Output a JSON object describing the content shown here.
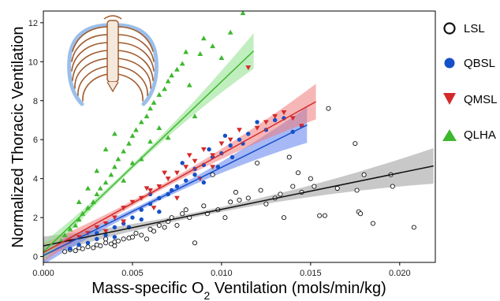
{
  "chart_data": {
    "type": "scatter",
    "title": "",
    "xlabel_main": "Mass-specific O",
    "xlabel_sub": "2",
    "xlabel_rest": " Ventilation (mols/min/kg)",
    "ylabel": "Normalized Thoracic Ventilation",
    "xlim": [
      0,
      0.022
    ],
    "ylim": [
      -0.3,
      12.6
    ],
    "x_ticks": [
      0.0,
      0.005,
      0.01,
      0.015,
      0.02
    ],
    "x_tick_labels": [
      "0.000",
      "0.005",
      "0.010",
      "0.015",
      "0.020"
    ],
    "y_ticks": [
      0,
      2,
      4,
      6,
      8,
      10,
      12
    ],
    "y_tick_labels": [
      "0",
      "2",
      "4",
      "6",
      "8",
      "10",
      "12"
    ],
    "legend_position": "right",
    "series": [
      {
        "name": "LSL",
        "marker": "open-circle",
        "color": "#111111",
        "band_color": "#9a9a9a",
        "fit": {
          "x": [
            0.0,
            0.0219
          ],
          "y": [
            0.55,
            4.65
          ]
        },
        "points": [
          [
            0.0012,
            0.25
          ],
          [
            0.0015,
            0.35
          ],
          [
            0.0018,
            0.3
          ],
          [
            0.002,
            0.45
          ],
          [
            0.0022,
            0.4
          ],
          [
            0.0025,
            0.5
          ],
          [
            0.0028,
            0.45
          ],
          [
            0.003,
            0.6
          ],
          [
            0.0032,
            0.55
          ],
          [
            0.0035,
            0.7
          ],
          [
            0.0038,
            0.65
          ],
          [
            0.004,
            0.75
          ],
          [
            0.0042,
            0.8
          ],
          [
            0.0045,
            0.9
          ],
          [
            0.0048,
            0.95
          ],
          [
            0.005,
            1.0
          ],
          [
            0.0052,
            1.2
          ],
          [
            0.0055,
            1.1
          ],
          [
            0.006,
            1.4
          ],
          [
            0.0062,
            1.3
          ],
          [
            0.0065,
            1.6
          ],
          [
            0.0068,
            1.5
          ],
          [
            0.007,
            1.8
          ],
          [
            0.0072,
            2.0
          ],
          [
            0.0075,
            1.6
          ],
          [
            0.0078,
            2.2
          ],
          [
            0.008,
            2.4
          ],
          [
            0.0082,
            2.0
          ],
          [
            0.0085,
            0.7
          ],
          [
            0.009,
            2.6
          ],
          [
            0.0092,
            2.2
          ],
          [
            0.0095,
            4.2
          ],
          [
            0.0098,
            2.4
          ],
          [
            0.0102,
            2.0
          ],
          [
            0.0105,
            2.8
          ],
          [
            0.0108,
            3.3
          ],
          [
            0.011,
            2.9
          ],
          [
            0.0115,
            3.0
          ],
          [
            0.012,
            4.8
          ],
          [
            0.0122,
            3.4
          ],
          [
            0.0125,
            2.7
          ],
          [
            0.013,
            3.0
          ],
          [
            0.0133,
            3.2
          ],
          [
            0.0135,
            2.0
          ],
          [
            0.0138,
            5.1
          ],
          [
            0.014,
            3.6
          ],
          [
            0.0143,
            4.3
          ],
          [
            0.0145,
            3.3
          ],
          [
            0.015,
            4.0
          ],
          [
            0.0152,
            3.6
          ],
          [
            0.0155,
            2.1
          ],
          [
            0.0158,
            2.1
          ],
          [
            0.016,
            7.6
          ],
          [
            0.0165,
            3.5
          ],
          [
            0.0175,
            5.8
          ],
          [
            0.0176,
            3.4
          ],
          [
            0.0177,
            2.3
          ],
          [
            0.0178,
            2.2
          ],
          [
            0.018,
            4.2
          ],
          [
            0.0185,
            1.7
          ],
          [
            0.0195,
            4.2
          ],
          [
            0.0196,
            3.6
          ],
          [
            0.0208,
            1.5
          ],
          [
            0.004,
            0.55
          ],
          [
            0.0035,
            0.9
          ],
          [
            0.0058,
            0.9
          ]
        ]
      },
      {
        "name": "QBSL",
        "marker": "filled-circle",
        "color": "#1550c8",
        "band_color": "#5d80ee",
        "fit": {
          "x": [
            0.0,
            0.0148
          ],
          "y": [
            0.05,
            6.75
          ]
        },
        "points": [
          [
            0.0015,
            0.4
          ],
          [
            0.002,
            0.6
          ],
          [
            0.0025,
            0.7
          ],
          [
            0.003,
            0.9
          ],
          [
            0.0035,
            1.1
          ],
          [
            0.004,
            1.5
          ],
          [
            0.0045,
            1.7
          ],
          [
            0.005,
            2.0
          ],
          [
            0.0055,
            2.4
          ],
          [
            0.006,
            2.7
          ],
          [
            0.0065,
            3.0
          ],
          [
            0.007,
            3.2
          ],
          [
            0.0075,
            3.6
          ],
          [
            0.008,
            3.9
          ],
          [
            0.0085,
            4.5
          ],
          [
            0.009,
            4.7
          ],
          [
            0.0095,
            5.1
          ],
          [
            0.01,
            5.3
          ],
          [
            0.0105,
            5.7
          ],
          [
            0.011,
            6.0
          ],
          [
            0.0115,
            6.3
          ],
          [
            0.012,
            6.9
          ],
          [
            0.0125,
            6.5
          ],
          [
            0.013,
            7.0
          ],
          [
            0.0135,
            7.1
          ],
          [
            0.014,
            6.4
          ],
          [
            0.0145,
            6.7
          ],
          [
            0.003,
            1.2
          ],
          [
            0.004,
            1.0
          ],
          [
            0.0048,
            1.5
          ],
          [
            0.0055,
            1.9
          ],
          [
            0.006,
            3.2
          ],
          [
            0.0065,
            2.3
          ],
          [
            0.0072,
            3.4
          ],
          [
            0.0078,
            4.8
          ],
          [
            0.0085,
            4.2
          ],
          [
            0.009,
            3.8
          ],
          [
            0.0093,
            5.5
          ],
          [
            0.0098,
            4.6
          ],
          [
            0.0102,
            6.2
          ],
          [
            0.0106,
            5.1
          ],
          [
            0.0112,
            5.8
          ]
        ]
      },
      {
        "name": "QMSL",
        "marker": "triangle-down",
        "color": "#d42a2a",
        "band_color": "#f07a7a",
        "fit": {
          "x": [
            0.0,
            0.0153
          ],
          "y": [
            0.2,
            7.95
          ]
        },
        "points": [
          [
            0.0015,
            0.8
          ],
          [
            0.002,
            1.0
          ],
          [
            0.0025,
            1.2
          ],
          [
            0.003,
            1.5
          ],
          [
            0.0035,
            1.7
          ],
          [
            0.004,
            2.0
          ],
          [
            0.0045,
            2.5
          ],
          [
            0.005,
            2.8
          ],
          [
            0.0055,
            3.0
          ],
          [
            0.006,
            3.4
          ],
          [
            0.0065,
            3.6
          ],
          [
            0.007,
            4.0
          ],
          [
            0.0075,
            4.3
          ],
          [
            0.008,
            4.6
          ],
          [
            0.0085,
            4.9
          ],
          [
            0.009,
            5.5
          ],
          [
            0.0095,
            5.2
          ],
          [
            0.01,
            5.8
          ],
          [
            0.0105,
            6.0
          ],
          [
            0.011,
            6.5
          ],
          [
            0.0115,
            9.7
          ],
          [
            0.012,
            6.6
          ],
          [
            0.0125,
            6.9
          ],
          [
            0.013,
            7.2
          ],
          [
            0.0135,
            7.4
          ],
          [
            0.014,
            7.1
          ],
          [
            0.0145,
            6.7
          ],
          [
            0.0035,
            1.3
          ],
          [
            0.0045,
            1.8
          ],
          [
            0.0058,
            3.5
          ],
          [
            0.0062,
            2.5
          ],
          [
            0.0068,
            4.3
          ],
          [
            0.0075,
            3.0
          ],
          [
            0.0082,
            5.2
          ],
          [
            0.0088,
            4.0
          ],
          [
            0.0095,
            4.6
          ]
        ]
      },
      {
        "name": "QLHA",
        "marker": "triangle-up",
        "color": "#3db82e",
        "band_color": "#8ee08a",
        "fit": {
          "x": [
            0.0,
            0.0118
          ],
          "y": [
            0.25,
            10.55
          ]
        },
        "points": [
          [
            0.001,
            0.8
          ],
          [
            0.0012,
            1.1
          ],
          [
            0.0015,
            1.4
          ],
          [
            0.0018,
            1.6
          ],
          [
            0.002,
            1.9
          ],
          [
            0.0022,
            2.2
          ],
          [
            0.0025,
            2.5
          ],
          [
            0.0028,
            2.8
          ],
          [
            0.003,
            3.2
          ],
          [
            0.0032,
            3.5
          ],
          [
            0.0035,
            3.8
          ],
          [
            0.0038,
            4.2
          ],
          [
            0.004,
            4.6
          ],
          [
            0.0042,
            5.0
          ],
          [
            0.0045,
            5.4
          ],
          [
            0.0048,
            5.8
          ],
          [
            0.005,
            6.2
          ],
          [
            0.0052,
            6.5
          ],
          [
            0.0055,
            6.9
          ],
          [
            0.0058,
            7.2
          ],
          [
            0.006,
            7.6
          ],
          [
            0.0062,
            7.9
          ],
          [
            0.0065,
            8.3
          ],
          [
            0.0068,
            8.6
          ],
          [
            0.007,
            9.0
          ],
          [
            0.0072,
            9.3
          ],
          [
            0.0075,
            9.6
          ],
          [
            0.0078,
            9.9
          ],
          [
            0.008,
            10.5
          ],
          [
            0.0082,
            8.8
          ],
          [
            0.0085,
            7.2
          ],
          [
            0.0088,
            10.4
          ],
          [
            0.009,
            11.2
          ],
          [
            0.0095,
            10.8
          ],
          [
            0.01,
            10.2
          ],
          [
            0.0105,
            11.5
          ],
          [
            0.0112,
            12.5
          ],
          [
            0.002,
            2.8
          ],
          [
            0.0025,
            3.5
          ],
          [
            0.003,
            4.4
          ],
          [
            0.0035,
            5.5
          ],
          [
            0.004,
            6.3
          ],
          [
            0.0045,
            3.9
          ],
          [
            0.005,
            4.8
          ],
          [
            0.0055,
            5.0
          ],
          [
            0.006,
            5.9
          ],
          [
            0.0065,
            6.6
          ],
          [
            0.007,
            6.1
          ]
        ]
      }
    ]
  }
}
